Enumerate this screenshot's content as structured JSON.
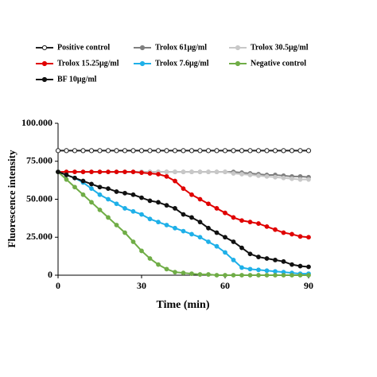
{
  "chart_data": {
    "type": "line",
    "x_label": "Time (min)",
    "y_label": "Fluorescence intensity",
    "x": [
      0,
      3,
      6,
      9,
      12,
      15,
      18,
      21,
      24,
      27,
      30,
      33,
      36,
      39,
      42,
      45,
      48,
      51,
      54,
      57,
      60,
      63,
      66,
      69,
      72,
      75,
      78,
      81,
      84,
      87,
      90
    ],
    "xlim": [
      0,
      90
    ],
    "xticks": [
      0,
      30,
      60,
      90
    ],
    "ylim": [
      0,
      100000
    ],
    "yticks": [
      {
        "value": 0,
        "label": "0"
      },
      {
        "value": 25000,
        "label": "25.000"
      },
      {
        "value": 50000,
        "label": "50.000"
      },
      {
        "value": 75000,
        "label": "75.000"
      },
      {
        "value": 100000,
        "label": "100.000"
      }
    ],
    "series": [
      {
        "name": "Positive control",
        "color": "#222222",
        "marker": "open",
        "values": [
          82000,
          82000,
          82000,
          82000,
          82000,
          82000,
          82000,
          82000,
          82000,
          82000,
          82000,
          82000,
          82000,
          82000,
          82000,
          82000,
          82000,
          82000,
          82000,
          82000,
          82000,
          82000,
          82000,
          82000,
          82000,
          82000,
          82000,
          82000,
          82000,
          82000,
          82000
        ]
      },
      {
        "name": "Trolox 61μg/ml",
        "color": "#7f7f7f",
        "marker": "filled",
        "values": [
          68000,
          68000,
          68000,
          68000,
          68000,
          68000,
          68000,
          68000,
          68000,
          68000,
          68000,
          68000,
          68000,
          68000,
          68000,
          68000,
          68000,
          68000,
          68000,
          68000,
          68000,
          68000,
          67500,
          67000,
          66500,
          66000,
          66000,
          65500,
          65000,
          65000,
          64500
        ]
      },
      {
        "name": "Trolox 30.5μg/ml",
        "color": "#c8c8c8",
        "marker": "filled",
        "values": [
          68000,
          68000,
          68000,
          68000,
          68000,
          68000,
          68000,
          68000,
          68000,
          68000,
          68000,
          68000,
          68000,
          68000,
          68000,
          68000,
          68000,
          68000,
          68000,
          68000,
          68000,
          67000,
          66500,
          66000,
          65500,
          65000,
          64500,
          64000,
          63500,
          63000,
          63000
        ]
      },
      {
        "name": "Trolox 15.25μg/ml",
        "color": "#e00000",
        "marker": "filled",
        "values": [
          68000,
          68000,
          68000,
          68000,
          68000,
          68000,
          68000,
          68000,
          68000,
          68000,
          67500,
          67000,
          66500,
          65000,
          62000,
          57000,
          53000,
          50000,
          47000,
          44000,
          41000,
          38000,
          36000,
          35000,
          34000,
          32000,
          30000,
          28000,
          27000,
          25500,
          25000
        ]
      },
      {
        "name": "Trolox 7.6μg/ml",
        "color": "#1fb0e8",
        "marker": "filled",
        "values": [
          68000,
          66000,
          64000,
          61000,
          57000,
          53000,
          50000,
          47000,
          44000,
          42000,
          40000,
          37000,
          35000,
          33000,
          31000,
          29000,
          27000,
          25000,
          22000,
          19000,
          15000,
          10000,
          5000,
          4000,
          3500,
          3000,
          2500,
          2000,
          1500,
          1000,
          1000
        ]
      },
      {
        "name": "Negative control",
        "color": "#70ad47",
        "marker": "filled",
        "values": [
          68000,
          63000,
          58000,
          53000,
          48000,
          43000,
          38000,
          33000,
          28000,
          22000,
          16000,
          11000,
          7000,
          4000,
          2000,
          1500,
          1000,
          500,
          500,
          0,
          0,
          0,
          0,
          0,
          0,
          0,
          0,
          0,
          0,
          0,
          0
        ]
      },
      {
        "name": "BF 10μg/ml",
        "color": "#111111",
        "marker": "filled",
        "values": [
          68000,
          66000,
          64000,
          62000,
          60000,
          58000,
          57000,
          55000,
          54000,
          53000,
          51000,
          49000,
          48000,
          46000,
          44000,
          40000,
          38000,
          35000,
          31000,
          28000,
          25000,
          22000,
          18000,
          14000,
          12000,
          11000,
          10000,
          9000,
          7000,
          6000,
          5500
        ]
      }
    ]
  }
}
